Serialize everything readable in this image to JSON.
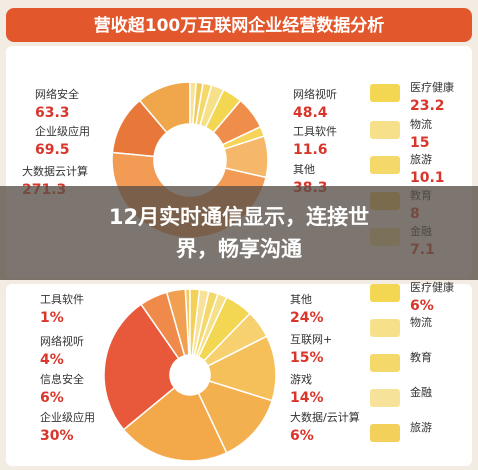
{
  "title": "营收超100万互联网企业经营数据分析",
  "overlay": {
    "text": "12月实时通信显示，连接世界，畅享沟通"
  },
  "chart_data": [
    {
      "type": "pie",
      "categories": [
        "网络安全",
        "企业级应用",
        "大数据云计算",
        "网络视听",
        "工具软件",
        "其他",
        "医疗健康",
        "物流",
        "旅游",
        "教育",
        "金融"
      ],
      "values": [
        63.3,
        69.5,
        271.3,
        48.4,
        11.6,
        38.3,
        23.2,
        15,
        10.1,
        8,
        7.1
      ],
      "colors": [
        "#f0a64b",
        "#e8783a",
        "#f29b55",
        "#f5b86a",
        "#f7d35a",
        "#ef8d4a",
        "#f3d651",
        "#f6e08a",
        "#f5d86a",
        "#f0cc5e",
        "#f7e29a"
      ]
    },
    {
      "type": "pie",
      "categories": [
        "工具软件",
        "网络视听",
        "信息安全",
        "企业级应用",
        "其他",
        "互联网+",
        "游戏",
        "大数据/云计算",
        "医疗健康",
        "物流",
        "教育",
        "金融",
        "旅游"
      ],
      "values": [
        1,
        4,
        6,
        30,
        24,
        15,
        14,
        6,
        6,
        2,
        2,
        2,
        2
      ],
      "value_labels": [
        "1%",
        "4%",
        "6%",
        "30%",
        "24%",
        "15%",
        "14%",
        "6%",
        "6%",
        null,
        null,
        null,
        null
      ],
      "colors": [
        "#f5c860",
        "#f0a050",
        "#f08a4a",
        "#e8583a",
        "#f3a94a",
        "#f2b04e",
        "#f5c05a",
        "#f7d070",
        "#f3d651",
        "#f6e08a",
        "#f5d86a",
        "#f7e29a",
        "#f3d05a"
      ]
    }
  ]
}
